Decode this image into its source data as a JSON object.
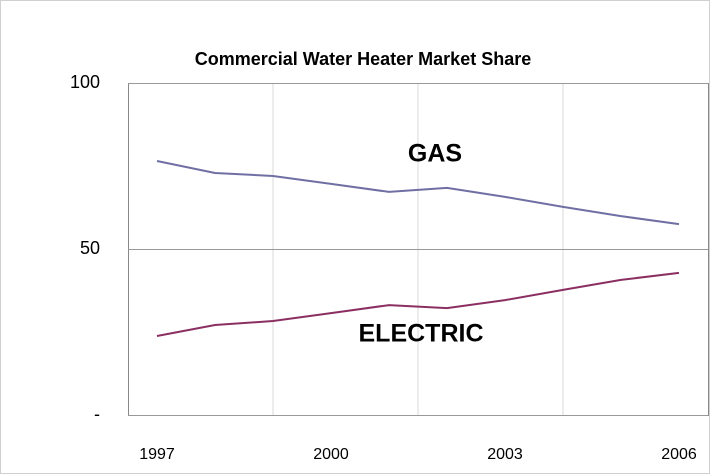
{
  "chart_data": {
    "type": "line",
    "title": "Commercial Water Heater Market Share",
    "x": [
      1997,
      1998,
      1999,
      2000,
      2001,
      2002,
      2003,
      2004,
      2005,
      2006
    ],
    "series": [
      {
        "name": "GAS",
        "color": "#6f6fa3",
        "values": [
          76.5,
          72.9,
          72.0,
          69.6,
          67.2,
          68.4,
          65.7,
          62.7,
          59.9,
          57.5
        ]
      },
      {
        "name": "ELECTRIC",
        "color": "#8b2f62",
        "values": [
          23.8,
          27.1,
          28.3,
          30.7,
          33.1,
          32.2,
          34.6,
          37.7,
          40.7,
          42.8
        ]
      }
    ],
    "xlim": [
      1996.5,
      2006.5
    ],
    "xticks": [
      1997,
      2000,
      2003,
      2006
    ],
    "ylim": [
      0,
      100
    ],
    "yticks": [
      {
        "value": 0,
        "label": "-"
      },
      50,
      100
    ],
    "grid": true
  }
}
